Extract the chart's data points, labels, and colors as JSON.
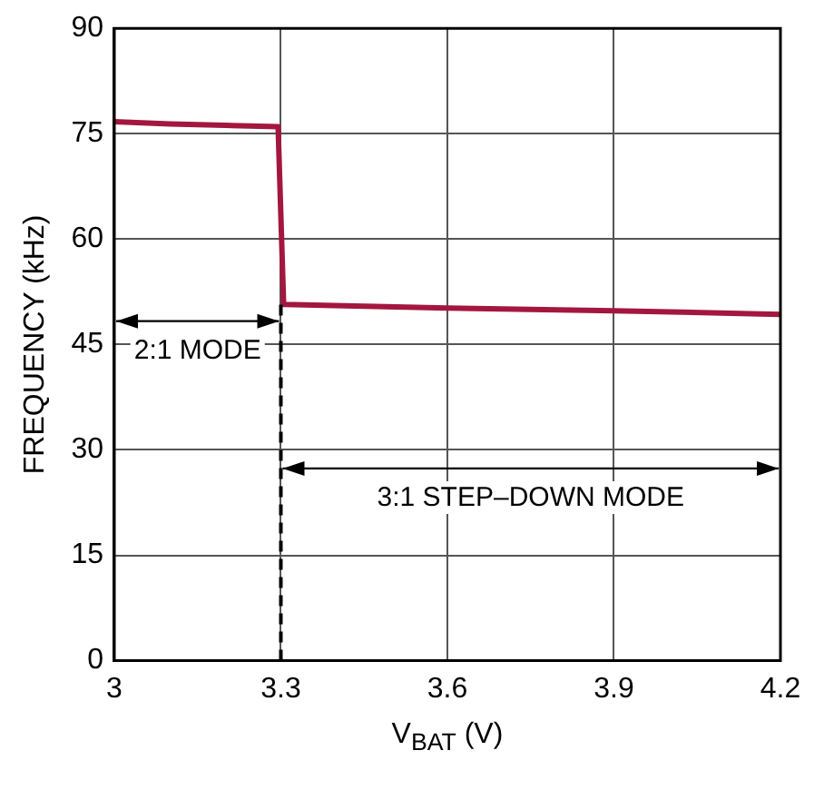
{
  "chart_data": {
    "type": "line",
    "xlabel": "V$_{BAT}$ (V)",
    "ylabel": "FREQUENCY (kHz)",
    "x": [
      3,
      3.1,
      3.2,
      3.295,
      3.305,
      3.6,
      3.9,
      4.2
    ],
    "series": [
      {
        "color": "#a3173f",
        "values": [
          76.7,
          76.4,
          76.2,
          76.0,
          50.7,
          50.2,
          49.8,
          49.3
        ]
      }
    ],
    "xlim": [
      3,
      4.2
    ],
    "xticks": [
      3,
      3.3,
      3.6,
      3.9,
      4.2
    ],
    "ylim": [
      0,
      90
    ],
    "yticks": [
      0,
      15,
      30,
      45,
      60,
      75,
      90
    ],
    "grid": true,
    "legend": false,
    "marker": "none",
    "line_style": "solid",
    "ref_lines": [
      {
        "axis": "x",
        "value": 3.3,
        "line_style": "dashed",
        "color": "#000000"
      }
    ],
    "annotations": [
      "2:1 MODE",
      "3:1 STEP–DOWN MODE"
    ]
  }
}
